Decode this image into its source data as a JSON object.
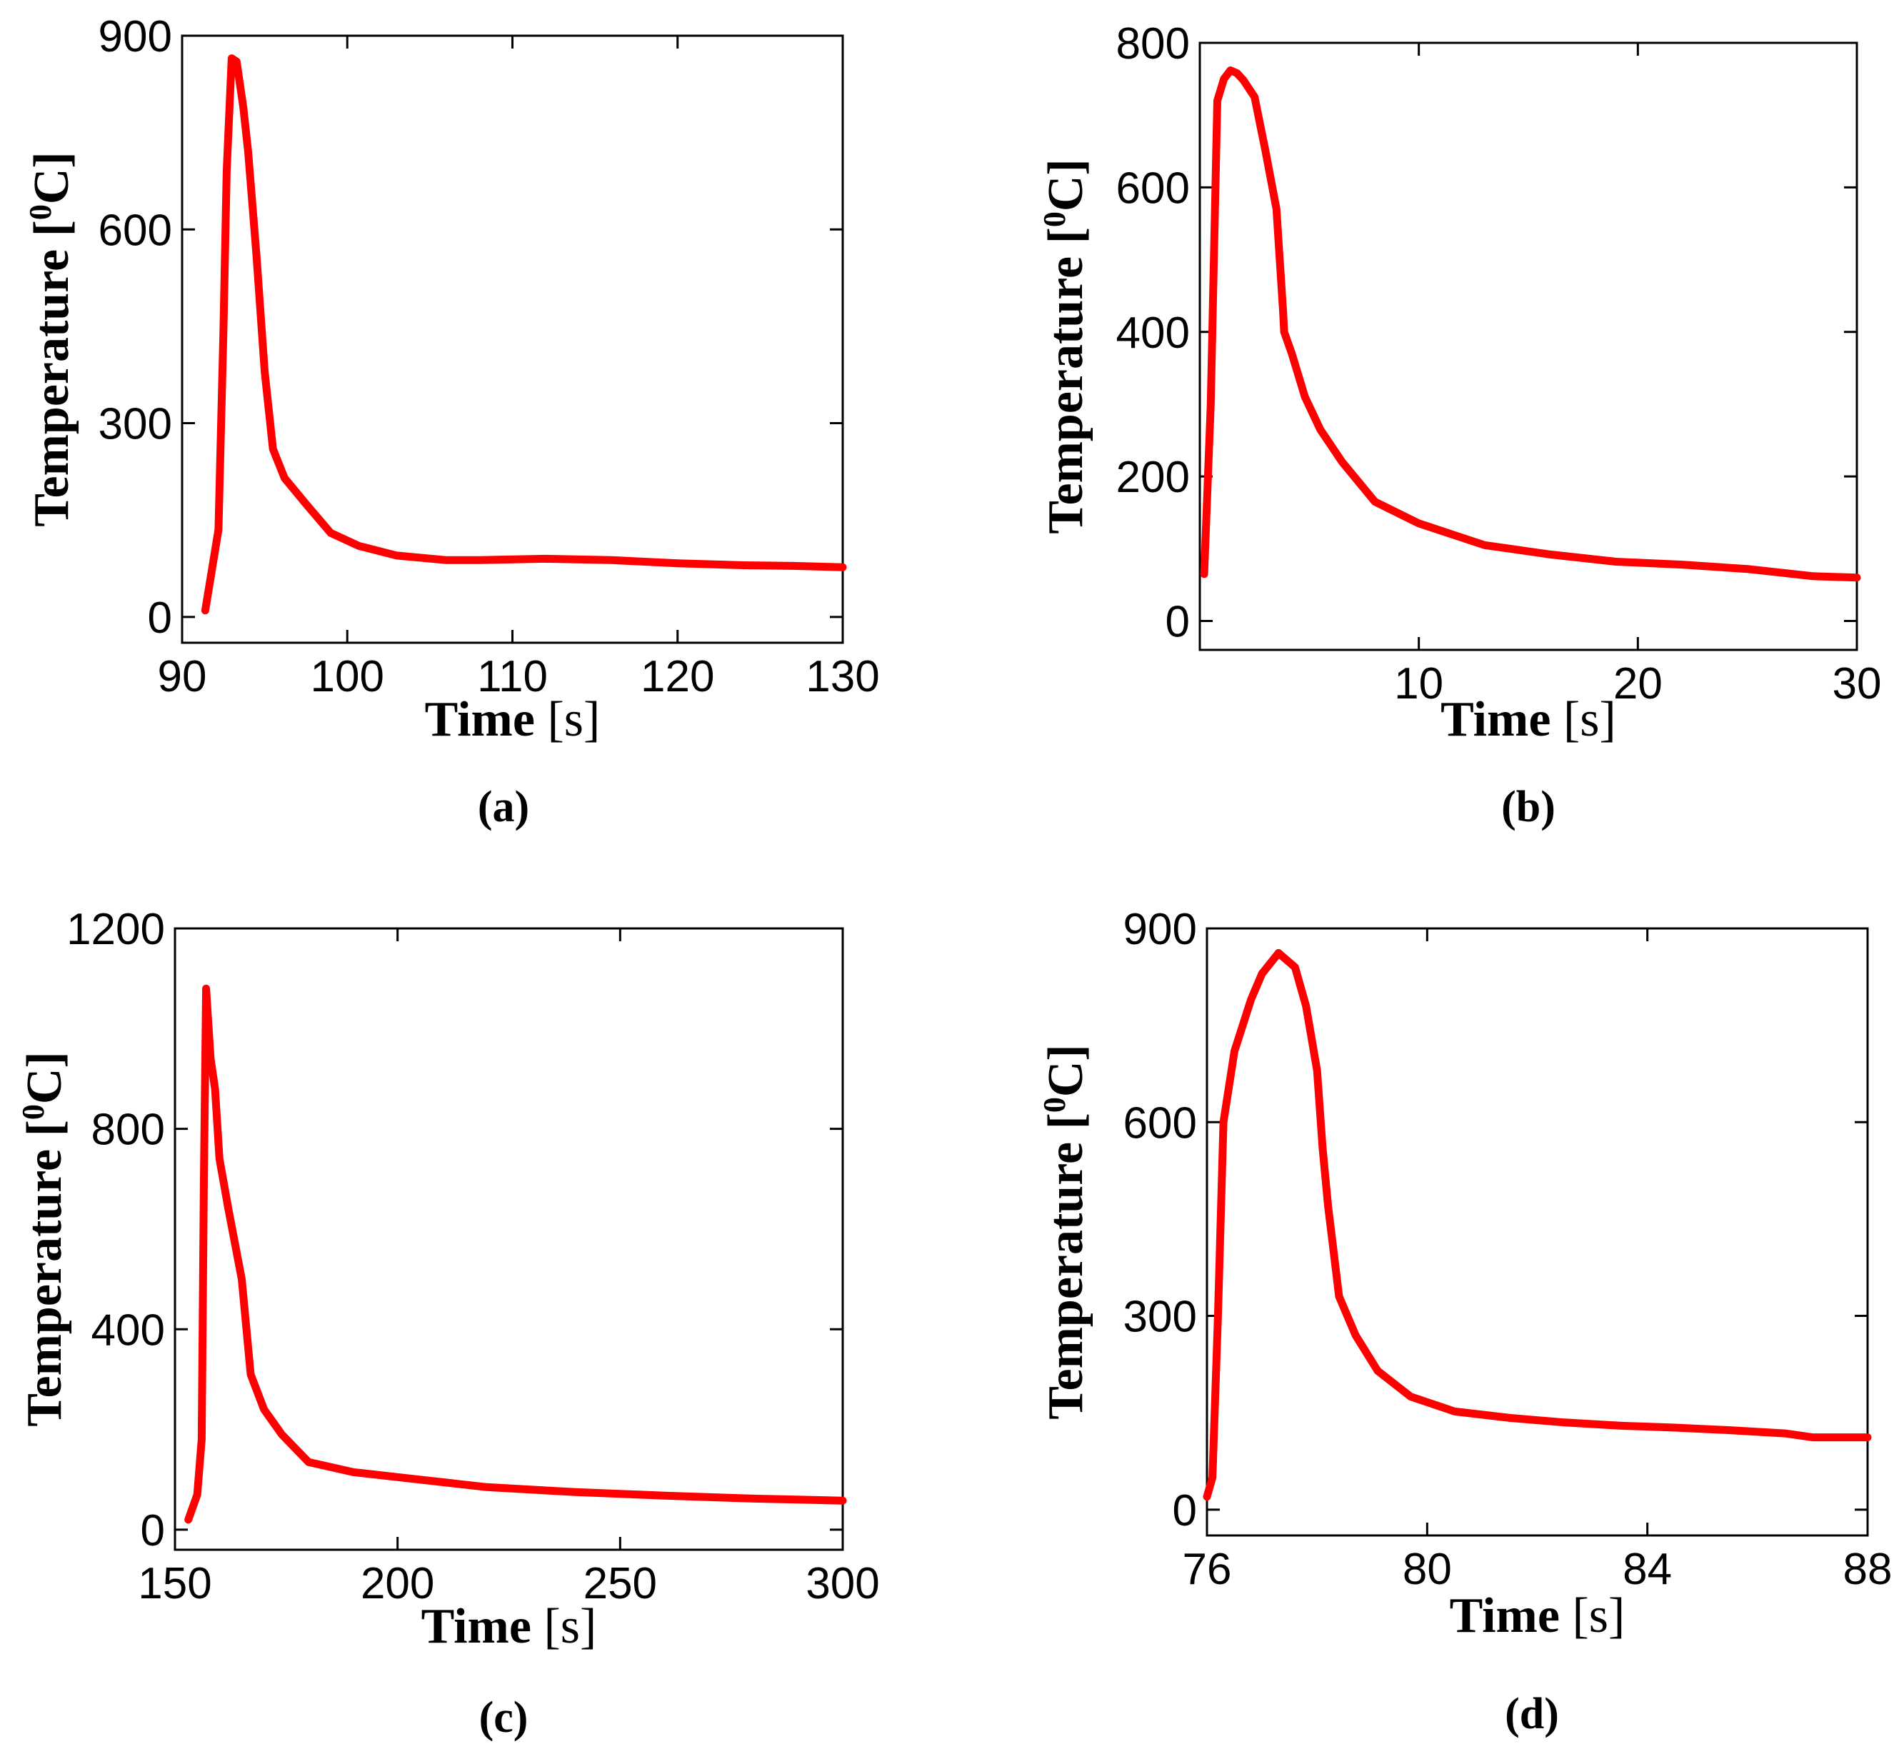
{
  "chart_data": [
    {
      "panel": "a",
      "type": "line",
      "caption": "(a)",
      "xlabel": "Time",
      "xunit": "[s]",
      "ylabel": "Temperature [",
      "ylabel_sup": "0",
      "ylabel_end": "C]",
      "xlim": [
        90,
        130
      ],
      "ylim": [
        -40,
        900
      ],
      "xticks": [
        90,
        100,
        110,
        120,
        130
      ],
      "yticks": [
        0,
        300,
        600,
        900
      ],
      "series": [
        {
          "name": "Temperature",
          "color": "#ff0000",
          "x": [
            91.4,
            92.2,
            92.5,
            92.7,
            93.0,
            93.3,
            93.7,
            94.0,
            94.5,
            95.0,
            95.5,
            96.2,
            97.5,
            99.0,
            100.7,
            103.0,
            106.0,
            108.0,
            112.0,
            116.0,
            120.0,
            124.0,
            127.0,
            130.0
          ],
          "y": [
            10,
            135,
            440,
            690,
            865,
            860,
            790,
            720,
            560,
            380,
            260,
            215,
            175,
            130,
            110,
            95,
            88,
            88,
            90,
            88,
            83,
            80,
            79,
            77
          ]
        }
      ]
    },
    {
      "panel": "b",
      "type": "line",
      "caption": "(b)",
      "xlabel": "Time",
      "xunit": "[s]",
      "ylabel": "Temperature [",
      "ylabel_sup": "0",
      "ylabel_end": "C]",
      "xlim": [
        0,
        30
      ],
      "ylim": [
        -40,
        800
      ],
      "xticks": [
        10,
        20,
        30
      ],
      "yticks": [
        0,
        200,
        400,
        600,
        800
      ],
      "series": [
        {
          "name": "Temperature",
          "color": "#ff0000",
          "x": [
            0.2,
            0.5,
            0.8,
            1.1,
            1.4,
            1.7,
            2.0,
            2.5,
            3.0,
            3.5,
            3.8,
            3.85,
            4.2,
            4.8,
            5.5,
            6.5,
            8.0,
            10.0,
            13.0,
            16.0,
            19.0,
            22.0,
            25.0,
            28.0,
            30.0
          ],
          "y": [
            65,
            300,
            720,
            750,
            762,
            758,
            748,
            725,
            650,
            570,
            430,
            400,
            370,
            310,
            265,
            220,
            165,
            135,
            105,
            92,
            82,
            78,
            72,
            62,
            60
          ]
        }
      ]
    },
    {
      "panel": "c",
      "type": "line",
      "caption": "(c)",
      "xlabel": "Time",
      "xunit": "[s]",
      "ylabel": "Temperature [",
      "ylabel_sup": "0",
      "ylabel_end": "C]",
      "xlim": [
        150,
        300
      ],
      "ylim": [
        -40,
        1200
      ],
      "xticks": [
        150,
        200,
        250,
        300
      ],
      "yticks": [
        0,
        400,
        800,
        1200
      ],
      "series": [
        {
          "name": "Temperature",
          "color": "#ff0000",
          "x": [
            153.0,
            155.0,
            156.0,
            156.5,
            157.0,
            158.0,
            159.0,
            160.0,
            162.0,
            165.0,
            167.0,
            170.0,
            174.0,
            180.0,
            190.0,
            200.0,
            220.0,
            240.0,
            260.0,
            280.0,
            300.0
          ],
          "y": [
            20,
            70,
            180,
            700,
            1080,
            940,
            880,
            740,
            640,
            500,
            310,
            240,
            190,
            135,
            115,
            105,
            85,
            75,
            68,
            62,
            58
          ]
        }
      ]
    },
    {
      "panel": "d",
      "type": "line",
      "caption": "(d)",
      "xlabel": "Time",
      "xunit": "[s]",
      "ylabel": "Temperature [",
      "ylabel_sup": "0",
      "ylabel_end": "C]",
      "xlim": [
        76,
        88
      ],
      "ylim": [
        -40,
        900
      ],
      "xticks": [
        76,
        80,
        84,
        88
      ],
      "yticks": [
        0,
        300,
        600,
        900
      ],
      "series": [
        {
          "name": "Temperature",
          "color": "#ff0000",
          "x": [
            76.0,
            76.1,
            76.2,
            76.3,
            76.5,
            76.8,
            77.0,
            77.3,
            77.6,
            77.8,
            78.0,
            78.1,
            78.2,
            78.4,
            78.7,
            79.1,
            79.7,
            80.5,
            81.5,
            82.5,
            83.5,
            84.5,
            85.5,
            86.5,
            87.0,
            88.0
          ],
          "y": [
            20,
            50,
            300,
            600,
            710,
            790,
            830,
            862,
            840,
            780,
            680,
            560,
            470,
            330,
            270,
            215,
            175,
            152,
            142,
            135,
            130,
            127,
            123,
            118,
            112,
            112
          ]
        }
      ]
    }
  ]
}
